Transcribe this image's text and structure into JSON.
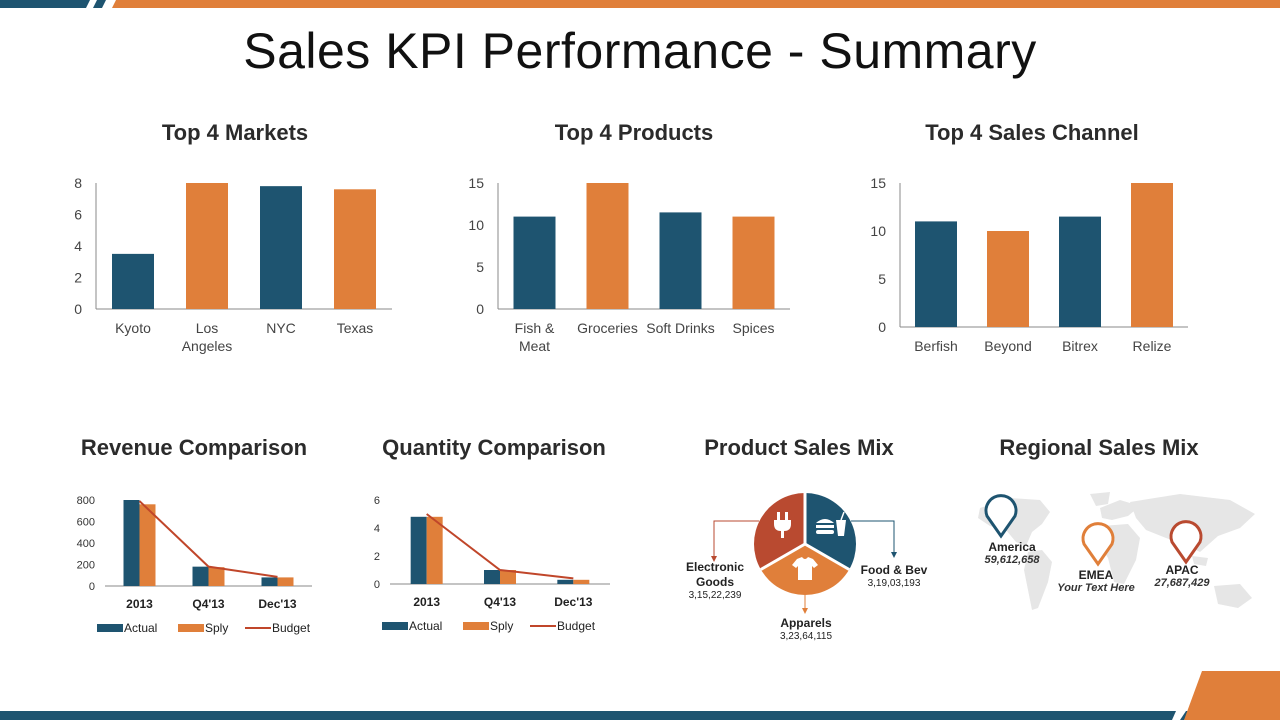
{
  "page_title": "Sales KPI Performance - Summary",
  "colors": {
    "navy": "#1e5470",
    "orange": "#e07f3a",
    "rust": "#b94a30",
    "budget_line": "#c0462a"
  },
  "chart_data": [
    {
      "id": "markets",
      "type": "bar",
      "title": "Top 4 Markets",
      "categories": [
        "Kyoto",
        "Los Angeles",
        "NYC",
        "Texas"
      ],
      "category_lines": [
        [
          "Kyoto"
        ],
        [
          "Los",
          "Angeles"
        ],
        [
          "NYC"
        ],
        [
          "Texas"
        ]
      ],
      "values": [
        3.5,
        8,
        7.8,
        7.6
      ],
      "ylim": [
        0,
        8
      ],
      "yticks": [
        0,
        2,
        4,
        6,
        8
      ],
      "bar_colors": [
        "#1e5470",
        "#e07f3a",
        "#1e5470",
        "#e07f3a"
      ]
    },
    {
      "id": "products",
      "type": "bar",
      "title": "Top 4 Products",
      "categories": [
        "Fish & Meat",
        "Groceries",
        "Soft Drinks",
        "Spices"
      ],
      "category_lines": [
        [
          "Fish &",
          "Meat"
        ],
        [
          "Groceries"
        ],
        [
          "Soft Drinks"
        ],
        [
          "Spices"
        ]
      ],
      "values": [
        11,
        15,
        11.5,
        11
      ],
      "ylim": [
        0,
        15
      ],
      "yticks": [
        0,
        5,
        10,
        15
      ],
      "bar_colors": [
        "#1e5470",
        "#e07f3a",
        "#1e5470",
        "#e07f3a"
      ]
    },
    {
      "id": "channels",
      "type": "bar",
      "title": "Top 4 Sales Channel",
      "categories": [
        "Berfish",
        "Beyond",
        "Bitrex",
        "Relize"
      ],
      "category_lines": [
        [
          "Berfish"
        ],
        [
          "Beyond"
        ],
        [
          "Bitrex"
        ],
        [
          "Relize"
        ]
      ],
      "values": [
        11,
        10,
        11.5,
        15
      ],
      "ylim": [
        0,
        15
      ],
      "yticks": [
        0,
        5,
        10,
        15
      ],
      "bar_colors": [
        "#1e5470",
        "#e07f3a",
        "#1e5470",
        "#e07f3a"
      ]
    },
    {
      "id": "revenue",
      "type": "bar",
      "title": "Revenue Comparison",
      "categories": [
        "2013",
        "Q4'13",
        "Dec'13"
      ],
      "series": [
        {
          "name": "Actual",
          "type": "bar",
          "color": "#1e5470",
          "values": [
            800,
            180,
            80
          ]
        },
        {
          "name": "Sply",
          "type": "bar",
          "color": "#e07f3a",
          "values": [
            760,
            175,
            80
          ]
        },
        {
          "name": "Budget",
          "type": "line",
          "color": "#c0462a",
          "values": [
            790,
            180,
            85
          ]
        }
      ],
      "ylim": [
        0,
        800
      ],
      "yticks": [
        0,
        200,
        400,
        600,
        800
      ]
    },
    {
      "id": "quantity",
      "type": "bar",
      "title": "Quantity Comparison",
      "categories": [
        "2013",
        "Q4'13",
        "Dec'13"
      ],
      "series": [
        {
          "name": "Actual",
          "type": "bar",
          "color": "#1e5470",
          "values": [
            4.8,
            1.0,
            0.3
          ]
        },
        {
          "name": "Sply",
          "type": "bar",
          "color": "#e07f3a",
          "values": [
            4.8,
            1.0,
            0.3
          ]
        },
        {
          "name": "Budget",
          "type": "line",
          "color": "#c0462a",
          "values": [
            5.0,
            1.0,
            0.4
          ]
        }
      ],
      "ylim": [
        0,
        6
      ],
      "yticks": [
        0,
        2,
        4,
        6
      ]
    },
    {
      "id": "product_mix",
      "type": "pie",
      "title": "Product Sales Mix",
      "slices": [
        {
          "name": "Electronic Goods",
          "value_label": "3,15,22,239",
          "color": "#b94a30",
          "icon": "plug-icon"
        },
        {
          "name": "Food & Bev",
          "value_label": "3,19,03,193",
          "color": "#1e5470",
          "icon": "food-icon"
        },
        {
          "name": "Apparels",
          "value_label": "3,23,64,115",
          "color": "#e07f3a",
          "icon": "shirt-icon"
        }
      ]
    }
  ],
  "regional": {
    "title": "Regional Sales Mix",
    "regions": [
      {
        "name": "America",
        "value": "59,612,658",
        "color": "#1e5470",
        "icon": "map-pin-icon"
      },
      {
        "name": "EMEA",
        "value": "Your Text Here",
        "color": "#e07f3a",
        "icon": "map-pin-icon"
      },
      {
        "name": "APAC",
        "value": "27,687,429",
        "color": "#b94a30",
        "icon": "map-pin-icon"
      }
    ]
  }
}
